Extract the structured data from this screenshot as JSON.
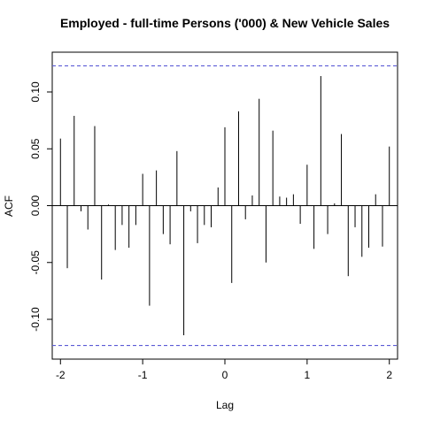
{
  "chart_data": {
    "type": "bar",
    "title": "Employed - full-time Persons ('000) & New Vehicle Sales",
    "xlabel": "Lag",
    "ylabel": "ACF",
    "xlim": [
      -2.1,
      2.1
    ],
    "ylim": [
      -0.135,
      0.135
    ],
    "xticks": [
      -2,
      -1,
      0,
      1,
      2
    ],
    "xtick_labels": [
      "-2",
      "-1",
      "0",
      "1",
      "2"
    ],
    "yticks": [
      -0.1,
      -0.05,
      0,
      0.05,
      0.1
    ],
    "ytick_labels": [
      "-0.10",
      "-0.05",
      "0.00",
      "0.05",
      "0.10"
    ],
    "confidence_bounds": [
      0.123,
      -0.123
    ],
    "confidence_line_color": "#5b5bd6",
    "zero_line": true,
    "bar_color": "#000000",
    "lags": [
      -2.0,
      -1.9167,
      -1.8333,
      -1.75,
      -1.6667,
      -1.5833,
      -1.5,
      -1.4167,
      -1.3333,
      -1.25,
      -1.1667,
      -1.0833,
      -1.0,
      -0.9167,
      -0.8333,
      -0.75,
      -0.6667,
      -0.5833,
      -0.5,
      -0.4167,
      -0.3333,
      -0.25,
      -0.1667,
      -0.0833,
      0.0,
      0.0833,
      0.1667,
      0.25,
      0.3333,
      0.4167,
      0.5,
      0.5833,
      0.6667,
      0.75,
      0.8333,
      0.9167,
      1.0,
      1.0833,
      1.1667,
      1.25,
      1.3333,
      1.4167,
      1.5,
      1.5833,
      1.6667,
      1.75,
      1.8333,
      1.9167,
      2.0
    ],
    "values": [
      0.059,
      -0.055,
      0.079,
      -0.005,
      -0.021,
      0.07,
      -0.065,
      0.001,
      -0.039,
      -0.017,
      -0.037,
      -0.017,
      0.028,
      -0.088,
      0.031,
      -0.025,
      -0.034,
      0.048,
      -0.114,
      -0.005,
      -0.033,
      -0.017,
      -0.019,
      0.016,
      0.069,
      -0.068,
      0.083,
      -0.012,
      0.009,
      0.094,
      -0.05,
      0.066,
      0.008,
      0.007,
      0.01,
      -0.016,
      0.036,
      -0.038,
      0.114,
      -0.025,
      0.002,
      0.063,
      -0.062,
      -0.019,
      -0.045,
      -0.037,
      0.01,
      -0.036,
      0.052
    ]
  }
}
